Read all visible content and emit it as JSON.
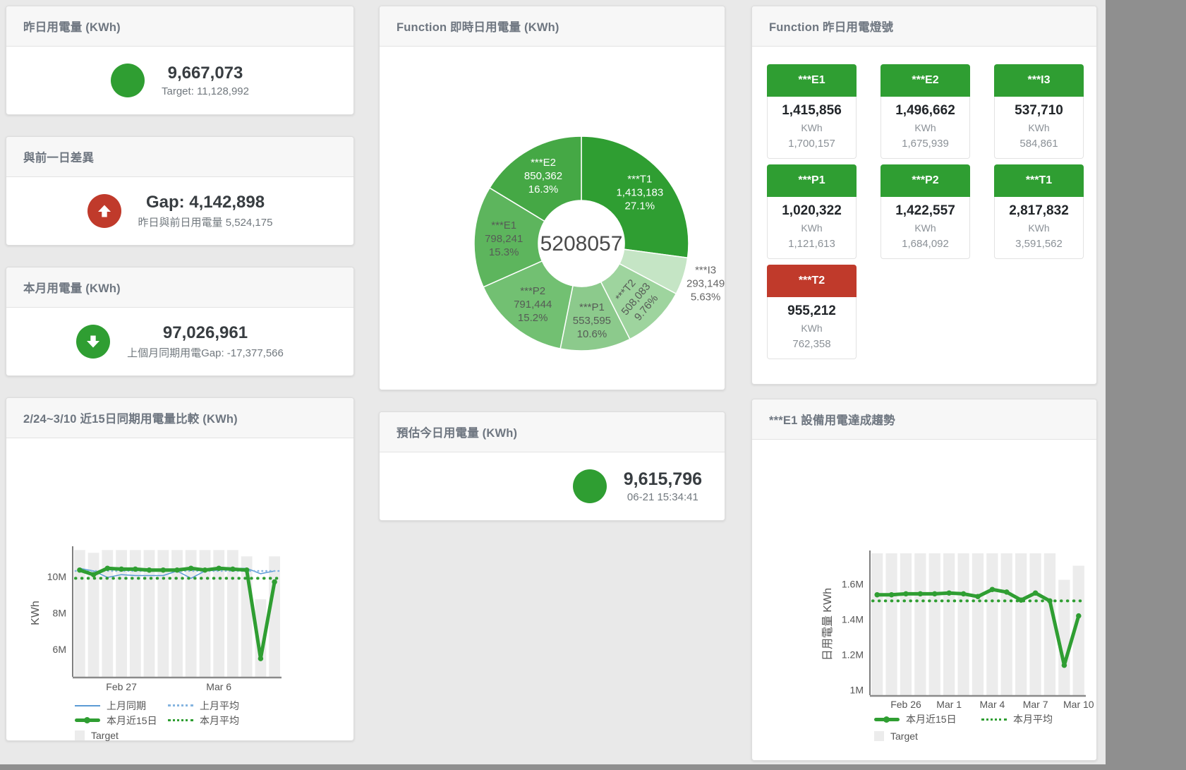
{
  "colors": {
    "green": "#2f9e32",
    "red": "#c03a2b",
    "bar_gray": "#ececec",
    "blue": "#5b9bd5",
    "blue_light": "#85b4e0"
  },
  "cards": {
    "yesterday": {
      "title": "昨日用電量 (KWh)",
      "value": "9,667,073",
      "subtitle": "Target: 11,128,992"
    },
    "gap_prev_day": {
      "title": "與前一日差異",
      "value": "Gap: 4,142,898",
      "subtitle": "昨日與前日用電量 5,524,175"
    },
    "month": {
      "title": "本月用電量 (KWh)",
      "value": "97,026,961",
      "subtitle": "上個月同期用電Gap: -17,377,566"
    },
    "estimate": {
      "title": "預估今日用電量 (KWh)",
      "value": "9,615,796",
      "subtitle": "06-21 15:34:41"
    },
    "donut": {
      "title": "Function 即時日用電量 (KWh)"
    },
    "lights": {
      "title": "Function 昨日用電燈號",
      "tiles": [
        {
          "name": "***E1",
          "value": "1,415,856",
          "unit": "KWh",
          "target": "1,700,157",
          "status": "green"
        },
        {
          "name": "***E2",
          "value": "1,496,662",
          "unit": "KWh",
          "target": "1,675,939",
          "status": "green"
        },
        {
          "name": "***I3",
          "value": "537,710",
          "unit": "KWh",
          "target": "584,861",
          "status": "green"
        },
        {
          "name": "***P1",
          "value": "1,020,322",
          "unit": "KWh",
          "target": "1,121,613",
          "status": "green"
        },
        {
          "name": "***P2",
          "value": "1,422,557",
          "unit": "KWh",
          "target": "1,684,092",
          "status": "green"
        },
        {
          "name": "***T1",
          "value": "2,817,832",
          "unit": "KWh",
          "target": "3,591,562",
          "status": "green"
        },
        {
          "name": "***T2",
          "value": "955,212",
          "unit": "KWh",
          "target": "762,358",
          "status": "red"
        }
      ]
    },
    "compare": {
      "title": "2/24~3/10 近15日同期用電量比較 (KWh)"
    },
    "trend": {
      "title": "***E1 設備用電達成趨勢"
    }
  },
  "chart_data": [
    {
      "type": "pie",
      "subtype": "donut",
      "title": "Function 即時日用電量 (KWh)",
      "center_total": "5208057",
      "segments": [
        {
          "label": "***T1",
          "value": 1413183,
          "value_display": "1,413,183",
          "pct": "27.1%",
          "color": "#2f9e32",
          "label_light": true
        },
        {
          "label": "***I3",
          "value": 293149,
          "value_display": "293,149",
          "pct": "5.63%",
          "color": "#c5e5c5",
          "label_outside": true
        },
        {
          "label": "***T2",
          "value": 508083,
          "value_display": "508,083",
          "pct": "9.76%",
          "color": "#9ed49e",
          "label_rotate": -50
        },
        {
          "label": "***P1",
          "value": 553595,
          "value_display": "553,595",
          "pct": "10.6%",
          "color": "#8cca8c"
        },
        {
          "label": "***P2",
          "value": 791444,
          "value_display": "791,444",
          "pct": "15.2%",
          "color": "#72c072"
        },
        {
          "label": "***E1",
          "value": 798241,
          "value_display": "798,241",
          "pct": "15.3%",
          "color": "#5db55d"
        },
        {
          "label": "***E2",
          "value": 850362,
          "value_display": "850,362",
          "pct": "16.3%",
          "color": "#45a845",
          "label_light": true
        }
      ]
    },
    {
      "type": "line",
      "title": "2/24~3/10 近15日同期用電量比較 (KWh)",
      "ylabel": "KWh",
      "ylim": [
        4500000,
        11500000
      ],
      "yticks": [
        {
          "value": 6000000,
          "label": "6M"
        },
        {
          "value": 8000000,
          "label": "8M"
        },
        {
          "value": 10000000,
          "label": "10M"
        }
      ],
      "categories": [
        "Feb 24",
        "Feb 25",
        "Feb 26",
        "Feb 27",
        "Feb 28",
        "Mar 1",
        "Mar 2",
        "Mar 3",
        "Mar 4",
        "Mar 5",
        "Mar 6",
        "Mar 7",
        "Mar 8",
        "Mar 9",
        "Mar 10"
      ],
      "xticks": [
        {
          "index": 3,
          "label": "Feb 27"
        },
        {
          "index": 10,
          "label": "Mar 6"
        }
      ],
      "target_bars": {
        "name": "Target",
        "color": "#ececec",
        "values": [
          11450000,
          11300000,
          11450000,
          11450000,
          11450000,
          11450000,
          11450000,
          11450000,
          11450000,
          11450000,
          11450000,
          11450000,
          11100000,
          8750000,
          11100000
        ]
      },
      "series": [
        {
          "name": "上月同期",
          "style": "line",
          "color": "#5b9bd5",
          "width": 1.5,
          "values": [
            10450000,
            10300000,
            9950000,
            10100000,
            10050000,
            10050000,
            10050000,
            10300000,
            9900000,
            10300000,
            10350000,
            10450000,
            10450000,
            10150000,
            10300000
          ]
        },
        {
          "name": "上月平均",
          "style": "dotted",
          "color": "#85b4e0",
          "width": 2.5,
          "constant": 10300000
        },
        {
          "name": "本月近15日",
          "style": "line-markers",
          "color": "#2f9e32",
          "width": 5,
          "values": [
            10350000,
            10100000,
            10450000,
            10400000,
            10400000,
            10350000,
            10350000,
            10350000,
            10450000,
            10350000,
            10450000,
            10400000,
            10350000,
            5500000,
            9700000
          ]
        },
        {
          "name": "本月平均",
          "style": "dotted",
          "color": "#2f9e32",
          "width": 4,
          "constant": 9900000
        }
      ],
      "legend_rows": [
        [
          "上月同期",
          "上月平均"
        ],
        [
          "本月近15日",
          "本月平均"
        ],
        [
          "Target"
        ]
      ],
      "legend_position": "bottom"
    },
    {
      "type": "line",
      "title": "***E1 設備用電達成趨勢",
      "ylabel": "日用電量 KWh",
      "ylim": [
        970000,
        1775000
      ],
      "yticks": [
        {
          "value": 1000000,
          "label": "1M"
        },
        {
          "value": 1200000,
          "label": "1.2M"
        },
        {
          "value": 1400000,
          "label": "1.4M"
        },
        {
          "value": 1600000,
          "label": "1.6M"
        }
      ],
      "categories": [
        "Feb 24",
        "Feb 25",
        "Feb 26",
        "Feb 27",
        "Feb 28",
        "Mar 1",
        "Mar 2",
        "Mar 3",
        "Mar 4",
        "Mar 5",
        "Mar 6",
        "Mar 7",
        "Mar 8",
        "Mar 9",
        "Mar 10"
      ],
      "xticks": [
        {
          "index": 2,
          "label": "Feb 26"
        },
        {
          "index": 5,
          "label": "Mar 1"
        },
        {
          "index": 8,
          "label": "Mar 4"
        },
        {
          "index": 11,
          "label": "Mar 7"
        },
        {
          "index": 14,
          "label": "Mar 10"
        }
      ],
      "target_bars": {
        "name": "Target",
        "color": "#ececec",
        "values": [
          1775000,
          1775000,
          1775000,
          1775000,
          1775000,
          1775000,
          1775000,
          1775000,
          1775000,
          1775000,
          1775000,
          1775000,
          1775000,
          1625000,
          1705000
        ]
      },
      "series": [
        {
          "name": "本月近15日",
          "style": "line-markers",
          "color": "#2f9e32",
          "width": 5,
          "values": [
            1540000,
            1540000,
            1545000,
            1545000,
            1545000,
            1550000,
            1545000,
            1530000,
            1570000,
            1555000,
            1510000,
            1550000,
            1505000,
            1140000,
            1420000
          ]
        },
        {
          "name": "本月平均",
          "style": "dotted",
          "color": "#2f9e32",
          "width": 4,
          "constant": 1505000
        }
      ],
      "legend_rows": [
        [
          "本月近15日",
          "本月平均"
        ],
        [
          "Target"
        ]
      ],
      "legend_position": "bottom"
    }
  ]
}
